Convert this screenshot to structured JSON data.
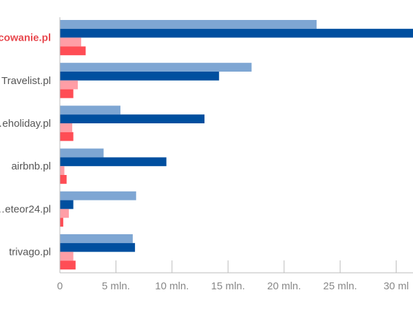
{
  "chart_data": {
    "type": "bar",
    "orientation": "horizontal",
    "title": "",
    "xlabel": "",
    "ylabel": "",
    "categories": [
      "…cowanie.pl",
      "Travelist.pl",
      "…eholiday.pl",
      "airbnb.pl",
      "…eteor24.pl",
      "trivago.pl"
    ],
    "highlight_category": "…cowanie.pl",
    "series": [
      {
        "color": "#7ea6d3",
        "values": [
          22.9,
          17.1,
          5.4,
          3.9,
          6.8,
          6.5
        ]
      },
      {
        "color": "#004f9f",
        "values": [
          31.5,
          14.2,
          12.9,
          9.5,
          1.2,
          6.7
        ]
      },
      {
        "color": "#ff9ea6",
        "values": [
          1.9,
          1.6,
          1.1,
          0.4,
          0.8,
          1.2
        ]
      },
      {
        "color": "#ff4d55",
        "values": [
          2.3,
          1.2,
          1.2,
          0.6,
          0.3,
          1.4
        ]
      }
    ],
    "xlim": [
      0,
      31.5
    ],
    "xticks": [
      0,
      5,
      10,
      15,
      20,
      25,
      30
    ],
    "xtick_labels": [
      "0",
      "5 mln.",
      "10 mln.",
      "15 mln.",
      "20 mln.",
      "25 mln.",
      "30 ml"
    ],
    "grid": false,
    "legend": "none",
    "colors": {
      "axis": "#bbbbbb",
      "category_text": "#555555",
      "highlight_text": "#e8494f",
      "tick_text": "#888888"
    }
  }
}
